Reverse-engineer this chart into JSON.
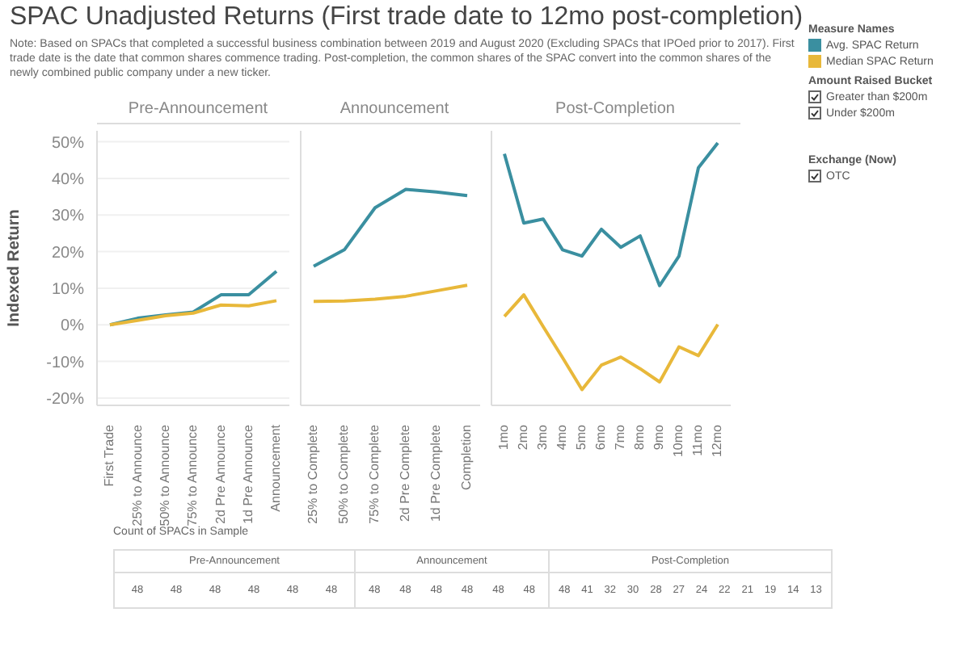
{
  "chart_data": [
    {
      "type": "line",
      "title": "SPAC Unadjusted Returns (First trade date to 12mo post-completion)",
      "subtitle": "Note: Based on SPACs that completed a successful business combination between 2019 and August 2020 (Excluding SPACs that IPOed prior to 2017). First trade date is the date that common shares commence trading. Post-completion, the common shares of the SPAC convert into the common shares of the newly combined public company under a new ticker.",
      "annotations": [
        "Pre-Announcement"
      ],
      "ylabel": "Indexed Return",
      "categories": [
        "First Trade",
        "25% to Announce",
        "50% to Announce",
        "75% to Announce",
        "2d Pre Announce",
        "1d Pre Announce",
        "Announcement"
      ],
      "series": [
        {
          "color": "#3a8fa0",
          "values": [
            0,
            1.8,
            2.7,
            3.5,
            8.2,
            8.2,
            14.6
          ]
        },
        {
          "color": "#e8b83a",
          "values": [
            0,
            1.2,
            2.5,
            3.2,
            5.4,
            5.2,
            6.6
          ]
        }
      ],
      "ylim": [
        -22,
        53
      ],
      "yticks": [
        {
          "value": -20,
          "label": "-20%"
        },
        {
          "value": -10,
          "label": "-10%"
        },
        {
          "value": 0,
          "label": "0%"
        },
        {
          "value": 10,
          "label": "10%"
        },
        {
          "value": 20,
          "label": "20%"
        },
        {
          "value": 30,
          "label": "30%"
        },
        {
          "value": 40,
          "label": "40%"
        },
        {
          "value": 50,
          "label": "50%"
        }
      ],
      "grid": "y"
    },
    {
      "type": "line",
      "title": "Announcement",
      "categories": [
        "25% to Complete",
        "50% to Complete",
        "75% to Complete",
        "2d Pre Complete",
        "1d Pre Complete",
        "Completion"
      ],
      "series": [
        {
          "color": "#3a8fa0",
          "values": [
            16,
            20.5,
            32,
            37,
            36.3,
            35.3
          ]
        },
        {
          "color": "#e8b83a",
          "values": [
            6.4,
            6.5,
            7,
            7.8,
            9.3,
            10.8
          ]
        }
      ],
      "ylim": [
        -22,
        53
      ],
      "yticks": [
        {
          "value": -20,
          "label": null
        },
        {
          "value": -10,
          "label": null
        },
        {
          "value": 0,
          "label": null
        },
        {
          "value": 10,
          "label": null
        },
        {
          "value": 20,
          "label": null
        },
        {
          "value": 30,
          "label": null
        },
        {
          "value": 40,
          "label": null
        },
        {
          "value": 50,
          "label": null
        }
      ],
      "grid": "y",
      "tick_labels": "x"
    },
    {
      "type": "line",
      "title": "Post-Completion",
      "categories": [
        "1mo",
        "2mo",
        "3mo",
        "4mo",
        "5mo",
        "6mo",
        "7mo",
        "8mo",
        "9mo",
        "10mo",
        "11mo",
        "12mo"
      ],
      "series": [
        {
          "name": "Avg. SPAC Return",
          "color": "#3a8fa0",
          "values": [
            46.7,
            27.8,
            28.9,
            20.5,
            18.8,
            26.1,
            21.2,
            24.3,
            10.7,
            18.8,
            42.9,
            49.7
          ]
        },
        {
          "name": "Median SPAC Return",
          "color": "#e8b83a",
          "values": [
            2.3,
            8.2,
            -0.5,
            -9,
            -17.7,
            -11,
            -8.8,
            -12,
            -15.6,
            -6,
            -8.4,
            0.1
          ]
        }
      ],
      "ylim": [
        -22,
        53
      ],
      "yticks": [
        {
          "value": -20,
          "label": null
        },
        {
          "value": -10,
          "label": null
        },
        {
          "value": 0,
          "label": null
        },
        {
          "value": 10,
          "label": null
        },
        {
          "value": 20,
          "label": null
        },
        {
          "value": 30,
          "label": null
        },
        {
          "value": 40,
          "label": null
        },
        {
          "value": 50,
          "label": null
        }
      ],
      "grid": "y",
      "tick_labels": "x",
      "legend": "top right",
      "legend_title": "Measure Names",
      "annotations": [
        "Amount Raised Bucket",
        "Greater than $200m",
        "Under $200m",
        "Exchange (Now)",
        "OTC"
      ]
    },
    {
      "type": "other",
      "title": "Count of SPACs in Sample",
      "subtitle": "Pre-Announcement",
      "categories": [
        null,
        null,
        null,
        null,
        null,
        null
      ],
      "values": [
        48,
        48,
        48,
        48,
        48,
        48
      ],
      "data_labels": true
    },
    {
      "type": "other",
      "title": "Announcement",
      "categories": [
        null,
        null,
        null,
        null,
        null,
        null
      ],
      "values": [
        48,
        48,
        48,
        48,
        48,
        48
      ],
      "data_labels": true
    },
    {
      "type": "other",
      "title": "Post-Completion",
      "categories": [
        null,
        null,
        null,
        null,
        null,
        null,
        null,
        null,
        null,
        null,
        null,
        null
      ],
      "values": [
        48,
        41,
        32,
        30,
        28,
        27,
        24,
        22,
        21,
        19,
        14,
        13
      ],
      "data_labels": true
    }
  ]
}
